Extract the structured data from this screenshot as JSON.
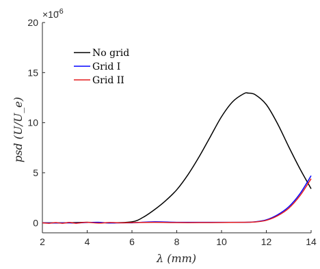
{
  "chart_data": {
    "type": "line",
    "title": "",
    "xlabel": "λ (mm)",
    "ylabel": "psd (U/U_e)",
    "y_exponent_label": "×10",
    "y_exponent_power": "-6",
    "xlim": [
      2,
      14
    ],
    "ylim": [
      -1,
      20
    ],
    "xticks": [
      2,
      4,
      6,
      8,
      10,
      12,
      14
    ],
    "yticks": [
      0,
      5,
      10,
      15,
      20
    ],
    "xtick_labels": [
      "2",
      "4",
      "6",
      "8",
      "10",
      "12",
      "14"
    ],
    "ytick_labels": [
      "0",
      "5",
      "10",
      "15",
      "20"
    ],
    "grid": false,
    "legend_position": "top-left",
    "series": [
      {
        "name": "No grid",
        "color": "#000000",
        "x": [
          2.0,
          3.0,
          4.0,
          5.0,
          6.0,
          6.5,
          7.0,
          7.5,
          8.0,
          8.5,
          9.0,
          9.5,
          10.0,
          10.5,
          11.0,
          11.2,
          11.5,
          12.0,
          12.5,
          13.0,
          13.5,
          14.0
        ],
        "y": [
          0.0,
          0.0,
          0.05,
          0.0,
          0.1,
          0.55,
          1.3,
          2.2,
          3.3,
          4.8,
          6.6,
          8.6,
          10.6,
          12.1,
          12.9,
          12.95,
          12.8,
          11.8,
          9.9,
          7.6,
          5.4,
          3.4
        ]
      },
      {
        "name": "Grid I",
        "color": "#0000ff",
        "x": [
          2.0,
          2.5,
          3.0,
          3.5,
          4.0,
          4.5,
          5.0,
          5.5,
          6.0,
          7.0,
          8.0,
          9.0,
          10.0,
          11.0,
          11.5,
          12.0,
          12.5,
          13.0,
          13.5,
          14.0
        ],
        "y": [
          0.0,
          -0.02,
          0.0,
          -0.02,
          0.03,
          0.05,
          -0.02,
          0.0,
          0.0,
          0.1,
          0.05,
          0.05,
          0.05,
          0.05,
          0.1,
          0.3,
          0.8,
          1.6,
          2.9,
          4.7
        ]
      },
      {
        "name": "Grid II",
        "color": "#e41a1c",
        "x": [
          2.0,
          2.3,
          2.6,
          2.9,
          3.2,
          3.5,
          3.8,
          4.0,
          4.5,
          5.0,
          5.5,
          6.0,
          7.0,
          8.0,
          9.0,
          10.0,
          11.0,
          11.5,
          12.0,
          12.5,
          13.0,
          13.5,
          14.0
        ],
        "y": [
          0.0,
          -0.05,
          0.02,
          -0.05,
          0.04,
          -0.05,
          0.03,
          0.05,
          -0.03,
          0.03,
          0.0,
          0.02,
          0.05,
          0.02,
          0.02,
          0.03,
          0.05,
          0.08,
          0.25,
          0.7,
          1.45,
          2.7,
          4.4
        ]
      }
    ]
  }
}
